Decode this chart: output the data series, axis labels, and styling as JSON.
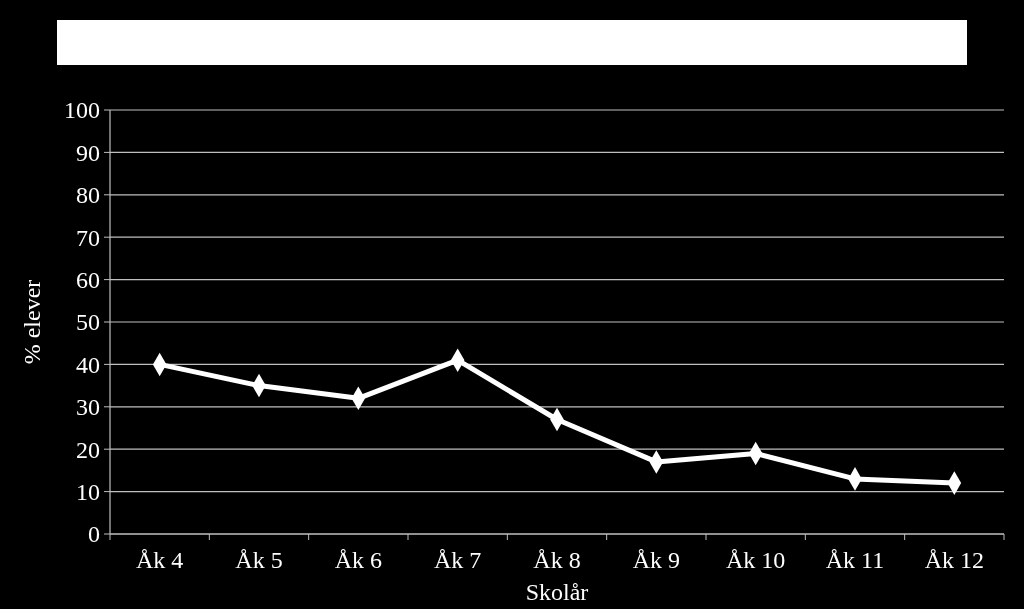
{
  "chart_data": {
    "type": "line",
    "xlabel": "Skolår",
    "ylabel": "% elever",
    "categories": [
      "Åk 4",
      "Åk 5",
      "Åk 6",
      "Åk 7",
      "Åk 8",
      "Åk 9",
      "Åk 10",
      "Åk 11",
      "Åk 12"
    ],
    "series": [
      {
        "color": "#ffffff",
        "values": [
          40,
          35,
          32,
          41,
          27,
          17,
          19,
          13,
          12
        ]
      }
    ],
    "ylim": [
      0,
      100
    ],
    "yticks": [
      0,
      10,
      20,
      30,
      40,
      50,
      60,
      70,
      80,
      90,
      100
    ],
    "grid": "y",
    "marker": "diamond",
    "line_style": "solid"
  }
}
